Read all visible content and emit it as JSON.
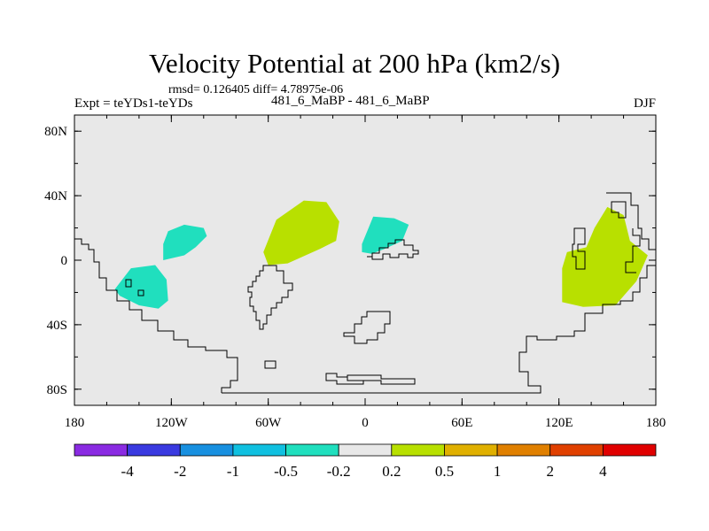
{
  "title": "Velocity Potential at 200 hPa (km2/s)",
  "stats": "rmsd= 0.126405 diff= 4.78975e-06",
  "expt_label": "Expt = teYDs1-teYDs",
  "runs_label": "481_6_MaBP - 481_6_MaBP",
  "season": "DJF",
  "map": {
    "background_color": "#e8e8e8",
    "lon_range": [
      -180,
      180
    ],
    "lat_range": [
      -90,
      90
    ],
    "x_ticks": [
      {
        "value": -180,
        "label": "180"
      },
      {
        "value": -120,
        "label": "120W"
      },
      {
        "value": -60,
        "label": "60W"
      },
      {
        "value": 0,
        "label": "0"
      },
      {
        "value": 60,
        "label": "60E"
      },
      {
        "value": 120,
        "label": "120E"
      },
      {
        "value": 180,
        "label": "180"
      }
    ],
    "y_ticks": [
      {
        "value": 80,
        "label": "80N"
      },
      {
        "value": 40,
        "label": "40N"
      },
      {
        "value": 0,
        "label": "0"
      },
      {
        "value": -40,
        "label": "40S"
      },
      {
        "value": -80,
        "label": "80S"
      }
    ]
  },
  "anomaly_regions": [
    {
      "name": "region-southeast-pacific",
      "sign": "negative",
      "color": "#20dfbe",
      "points": [
        [
          -155,
          -18
        ],
        [
          -145,
          -5
        ],
        [
          -130,
          -3
        ],
        [
          -123,
          -12
        ],
        [
          -122,
          -25
        ],
        [
          -128,
          -30
        ],
        [
          -140,
          -28
        ],
        [
          -152,
          -22
        ]
      ]
    },
    {
      "name": "region-east-pacific",
      "sign": "negative",
      "color": "#20dfbe",
      "points": [
        [
          -125,
          10
        ],
        [
          -122,
          18
        ],
        [
          -112,
          22
        ],
        [
          -100,
          20
        ],
        [
          -98,
          15
        ],
        [
          -105,
          8
        ],
        [
          -112,
          3
        ],
        [
          -125,
          0
        ]
      ]
    },
    {
      "name": "region-atlantic",
      "sign": "positive",
      "color": "#b8e000",
      "points": [
        [
          -63,
          5
        ],
        [
          -55,
          25
        ],
        [
          -38,
          37
        ],
        [
          -24,
          36
        ],
        [
          -16,
          24
        ],
        [
          -18,
          12
        ],
        [
          -28,
          7
        ],
        [
          -48,
          -2
        ],
        [
          -60,
          -3
        ]
      ]
    },
    {
      "name": "region-west-africa",
      "sign": "negative",
      "color": "#20dfbe",
      "points": [
        [
          -2,
          10
        ],
        [
          5,
          27
        ],
        [
          18,
          26
        ],
        [
          27,
          22
        ],
        [
          23,
          12
        ],
        [
          12,
          7
        ],
        [
          4,
          4
        ],
        [
          -2,
          5
        ]
      ]
    },
    {
      "name": "region-maritime-continent",
      "sign": "positive",
      "color": "#b8e000",
      "points": [
        [
          122,
          -5
        ],
        [
          125,
          5
        ],
        [
          137,
          8
        ],
        [
          142,
          20
        ],
        [
          150,
          33
        ],
        [
          160,
          28
        ],
        [
          164,
          12
        ],
        [
          175,
          3
        ],
        [
          168,
          -13
        ],
        [
          155,
          -28
        ],
        [
          135,
          -29
        ],
        [
          122,
          -26
        ]
      ]
    }
  ],
  "colorbar": {
    "colors": [
      "#8a2be2",
      "#3a3ae0",
      "#1890e0",
      "#10c0e0",
      "#20dfbe",
      "#e8e8e8",
      "#b8e000",
      "#e0b000",
      "#e08000",
      "#e04000",
      "#e00000"
    ],
    "labels": [
      "-4",
      "-2",
      "-1",
      "-0.5",
      "-0.2",
      "0.2",
      "0.5",
      "1",
      "2",
      "4"
    ]
  }
}
